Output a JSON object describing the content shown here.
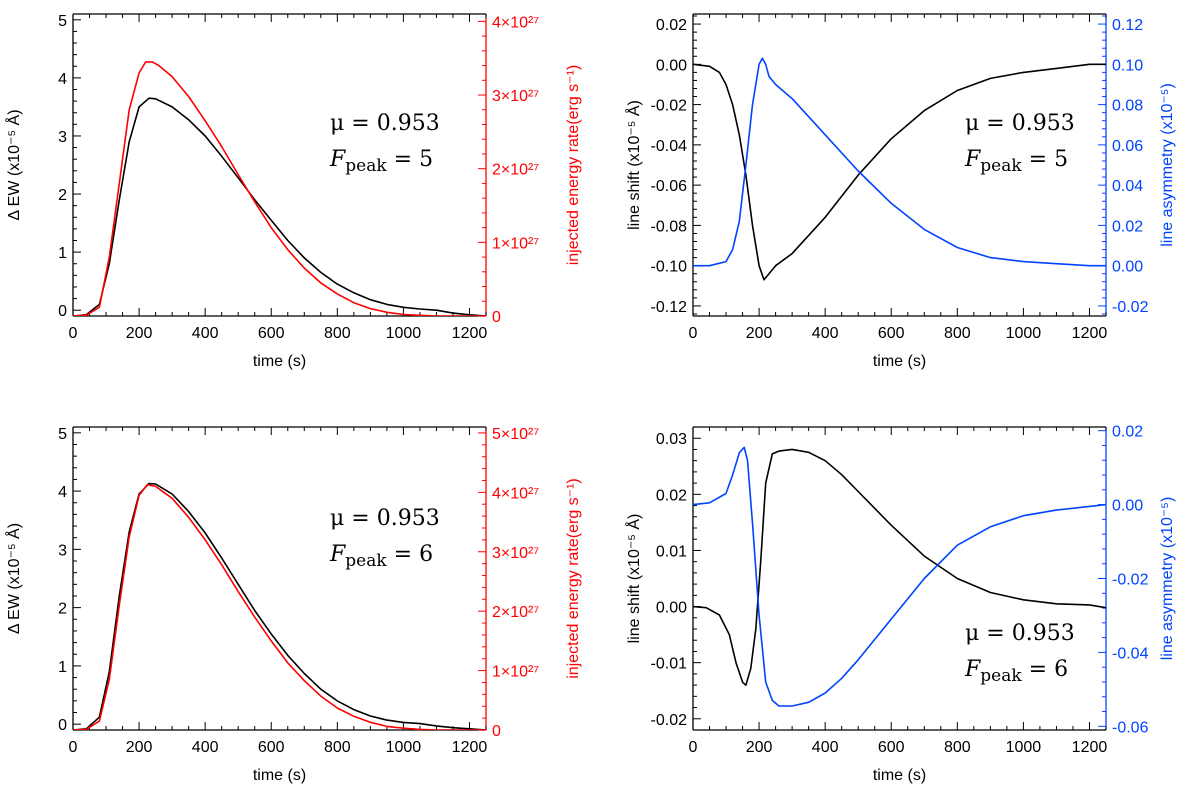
{
  "colors": {
    "axis": "#000000",
    "energy": "#ff0000",
    "asymmetry": "#0044ff"
  },
  "chart_data": [
    {
      "type": "line",
      "x_label": "time (s)",
      "y_label": "Δ EW (x10⁻⁵ Å)",
      "y2_label": "injected energy rate(erg s⁻¹)",
      "xlim": [
        0,
        1250
      ],
      "ylim": [
        -0.1,
        5.1
      ],
      "y2lim": [
        0,
        4.1e+27
      ],
      "x_ticks": [
        0,
        200,
        400,
        600,
        800,
        1000,
        1200
      ],
      "x_tick_labels": [
        "0",
        "200",
        "400",
        "600",
        "800",
        "1000",
        "1200"
      ],
      "y_ticks": [
        0,
        1,
        2,
        3,
        4,
        5
      ],
      "y_tick_labels": [
        "0",
        "1",
        "2",
        "3",
        "4",
        "5"
      ],
      "y2_ticks": [
        0,
        1e+27,
        2e+27,
        3e+27,
        4e+27
      ],
      "y2_tick_labels": [
        "0",
        "1×10²⁷",
        "2×10²⁷",
        "3×10²⁷",
        "4×10²⁷"
      ],
      "annotation": {
        "mu": "μ = 0.953",
        "f": "F",
        "f_sub": "peak",
        "f_val": " = 5"
      },
      "series": [
        {
          "axis": "left",
          "color": "#000000",
          "x": [
            0,
            40,
            80,
            110,
            140,
            170,
            200,
            230,
            250,
            300,
            350,
            400,
            450,
            500,
            550,
            600,
            650,
            700,
            750,
            800,
            850,
            900,
            950,
            1000,
            1050,
            1100,
            1150,
            1200,
            1250
          ],
          "values": [
            -0.1,
            -0.08,
            0.1,
            0.8,
            1.9,
            2.9,
            3.5,
            3.65,
            3.64,
            3.5,
            3.28,
            3.0,
            2.65,
            2.28,
            1.9,
            1.55,
            1.2,
            0.9,
            0.65,
            0.45,
            0.3,
            0.18,
            0.1,
            0.05,
            0.02,
            0.0,
            -0.05,
            -0.08,
            -0.1
          ]
        },
        {
          "axis": "right",
          "color": "#ff0000",
          "x": [
            0,
            40,
            80,
            110,
            140,
            170,
            200,
            220,
            240,
            260,
            300,
            350,
            400,
            450,
            500,
            550,
            600,
            650,
            700,
            750,
            800,
            850,
            900,
            950,
            1000,
            1050,
            1100,
            1150,
            1200,
            1250
          ],
          "values": [
            0,
            1e+25,
            1.2e+26,
            8e+26,
            1.8e+27,
            2.8e+27,
            3.3e+27,
            3.45e+27,
            3.45e+27,
            3.4e+27,
            3.25e+27,
            2.98e+27,
            2.65e+27,
            2.3e+27,
            1.92e+27,
            1.55e+27,
            1.2e+27,
            9e+26,
            6.5e+26,
            4.5e+26,
            3e+26,
            1.8e+26,
            1e+26,
            5e+25,
            2e+25,
            1e+25,
            0.0,
            0.0,
            0.0,
            0.0
          ]
        }
      ]
    },
    {
      "type": "line",
      "x_label": "time (s)",
      "y_label": "line shift (x10⁻⁵ Å)",
      "y2_label": "line asymmetry (x10⁻⁵)",
      "xlim": [
        0,
        1250
      ],
      "ylim": [
        -0.125,
        0.025
      ],
      "y2lim": [
        -0.025,
        0.125
      ],
      "x_ticks": [
        0,
        200,
        400,
        600,
        800,
        1000,
        1200
      ],
      "x_tick_labels": [
        "0",
        "200",
        "400",
        "600",
        "800",
        "1000",
        "1200"
      ],
      "y_ticks": [
        -0.12,
        -0.1,
        -0.08,
        -0.06,
        -0.04,
        -0.02,
        0.0,
        0.02
      ],
      "y_tick_labels": [
        "-0.12",
        "-0.10",
        "-0.08",
        "-0.06",
        "-0.04",
        "-0.02",
        "0.00",
        "0.02"
      ],
      "y2_ticks": [
        -0.02,
        0.0,
        0.02,
        0.04,
        0.06,
        0.08,
        0.1,
        0.12
      ],
      "y2_tick_labels": [
        "-0.02",
        "0.00",
        "0.02",
        "0.04",
        "0.06",
        "0.08",
        "0.10",
        "0.12"
      ],
      "annotation": {
        "mu": "μ = 0.953",
        "f": "F",
        "f_sub": "peak",
        "f_val": " = 5"
      },
      "series": [
        {
          "axis": "left",
          "color": "#000000",
          "x": [
            0,
            50,
            80,
            100,
            120,
            140,
            160,
            180,
            200,
            215,
            230,
            250,
            300,
            400,
            500,
            600,
            700,
            800,
            900,
            1000,
            1100,
            1200,
            1250
          ],
          "values": [
            0.0,
            -0.001,
            -0.004,
            -0.01,
            -0.02,
            -0.035,
            -0.055,
            -0.08,
            -0.1,
            -0.107,
            -0.104,
            -0.1,
            -0.094,
            -0.076,
            -0.055,
            -0.037,
            -0.023,
            -0.013,
            -0.007,
            -0.004,
            -0.002,
            0.0,
            0.0
          ]
        },
        {
          "axis": "right",
          "color": "#0044ff",
          "x": [
            0,
            50,
            100,
            120,
            140,
            160,
            180,
            200,
            210,
            220,
            230,
            250,
            300,
            400,
            500,
            600,
            700,
            800,
            900,
            1000,
            1100,
            1200,
            1250
          ],
          "values": [
            0.0,
            0.0,
            0.002,
            0.008,
            0.022,
            0.05,
            0.08,
            0.1,
            0.103,
            0.1,
            0.094,
            0.09,
            0.083,
            0.065,
            0.047,
            0.031,
            0.018,
            0.009,
            0.004,
            0.002,
            0.001,
            0.0,
            0.0
          ]
        }
      ]
    },
    {
      "type": "line",
      "x_label": "time (s)",
      "y_label": "Δ EW (x10⁻⁵ Å)",
      "y2_label": "injected energy rate(erg s⁻¹)",
      "xlim": [
        0,
        1250
      ],
      "ylim": [
        -0.1,
        5.1
      ],
      "y2lim": [
        0,
        5.1e+27
      ],
      "x_ticks": [
        0,
        200,
        400,
        600,
        800,
        1000,
        1200
      ],
      "x_tick_labels": [
        "0",
        "200",
        "400",
        "600",
        "800",
        "1000",
        "1200"
      ],
      "y_ticks": [
        0,
        1,
        2,
        3,
        4,
        5
      ],
      "y_tick_labels": [
        "0",
        "1",
        "2",
        "3",
        "4",
        "5"
      ],
      "y2_ticks": [
        0,
        1e+27,
        2e+27,
        3e+27,
        4e+27,
        5e+27
      ],
      "y2_tick_labels": [
        "0",
        "1×10²⁷",
        "2×10²⁷",
        "3×10²⁷",
        "4×10²⁷",
        "5×10²⁷"
      ],
      "annotation": {
        "mu": "μ = 0.953",
        "f": "F",
        "f_sub": "peak",
        "f_val": " = 6"
      },
      "series": [
        {
          "axis": "left",
          "color": "#000000",
          "x": [
            0,
            40,
            80,
            110,
            140,
            170,
            200,
            230,
            250,
            300,
            350,
            400,
            450,
            500,
            550,
            600,
            650,
            700,
            750,
            800,
            850,
            900,
            950,
            1000,
            1050,
            1100,
            1150,
            1200,
            1250
          ],
          "values": [
            -0.1,
            -0.08,
            0.12,
            0.9,
            2.2,
            3.3,
            3.95,
            4.13,
            4.12,
            3.95,
            3.65,
            3.28,
            2.85,
            2.4,
            1.95,
            1.55,
            1.18,
            0.87,
            0.6,
            0.4,
            0.25,
            0.14,
            0.07,
            0.03,
            0.01,
            -0.03,
            -0.06,
            -0.08,
            -0.1
          ]
        },
        {
          "axis": "right",
          "color": "#ff0000",
          "x": [
            0,
            40,
            80,
            110,
            140,
            170,
            200,
            225,
            250,
            300,
            350,
            400,
            450,
            500,
            550,
            600,
            650,
            700,
            750,
            800,
            850,
            900,
            950,
            1000,
            1050,
            1100,
            1150,
            1200,
            1250
          ],
          "values": [
            0,
            1e+25,
            1.5e+26,
            8.5e+26,
            2.1e+27,
            3.25e+27,
            3.95e+27,
            4.13e+27,
            4.1e+27,
            3.9e+27,
            3.58e+27,
            3.2e+27,
            2.78e+27,
            2.33e+27,
            1.9e+27,
            1.5e+27,
            1.13e+27,
            8.3e+26,
            5.7e+26,
            3.7e+26,
            2.3e+26,
            1.3e+26,
            6e+25,
            3e+25,
            1e+25,
            0.0,
            0.0,
            0.0,
            0.0
          ]
        }
      ]
    },
    {
      "type": "line",
      "x_label": "time (s)",
      "y_label": "line shift (x10⁻⁵ Å)",
      "y2_label": "line asymmetry (x10⁻⁵)",
      "xlim": [
        0,
        1250
      ],
      "ylim": [
        -0.022,
        0.032
      ],
      "y2lim": [
        -0.061,
        0.021
      ],
      "x_ticks": [
        0,
        200,
        400,
        600,
        800,
        1000,
        1200
      ],
      "x_tick_labels": [
        "0",
        "200",
        "400",
        "600",
        "800",
        "1000",
        "1200"
      ],
      "y_ticks": [
        -0.02,
        -0.01,
        0.0,
        0.01,
        0.02,
        0.03
      ],
      "y_tick_labels": [
        "-0.02",
        "-0.01",
        "0.00",
        "0.01",
        "0.02",
        "0.03"
      ],
      "y2_ticks": [
        -0.06,
        -0.04,
        -0.02,
        0.0,
        0.02
      ],
      "y2_tick_labels": [
        "-0.06",
        "-0.04",
        "-0.02",
        "0.00",
        "0.02"
      ],
      "annotation": {
        "mu": "μ = 0.953",
        "f": "F",
        "f_sub": "peak",
        "f_val": " = 6"
      },
      "series": [
        {
          "axis": "left",
          "color": "#000000",
          "x": [
            0,
            40,
            80,
            110,
            130,
            150,
            160,
            175,
            190,
            205,
            220,
            240,
            260,
            300,
            350,
            400,
            450,
            500,
            600,
            700,
            800,
            900,
            1000,
            1100,
            1200,
            1250
          ],
          "values": [
            0.0,
            -0.0002,
            -0.0015,
            -0.005,
            -0.01,
            -0.0135,
            -0.014,
            -0.011,
            -0.004,
            0.008,
            0.022,
            0.0272,
            0.0277,
            0.028,
            0.0275,
            0.026,
            0.0235,
            0.0205,
            0.0145,
            0.009,
            0.005,
            0.0025,
            0.0012,
            0.0005,
            0.0003,
            -0.0002
          ]
        },
        {
          "axis": "right",
          "color": "#0044ff",
          "x": [
            0,
            50,
            100,
            120,
            140,
            155,
            165,
            180,
            200,
            220,
            240,
            260,
            300,
            350,
            400,
            450,
            500,
            600,
            700,
            800,
            900,
            1000,
            1100,
            1200,
            1250
          ],
          "values": [
            0.0,
            0.0005,
            0.003,
            0.008,
            0.014,
            0.0155,
            0.012,
            -0.005,
            -0.03,
            -0.048,
            -0.053,
            -0.0545,
            -0.0545,
            -0.0535,
            -0.051,
            -0.047,
            -0.042,
            -0.031,
            -0.02,
            -0.011,
            -0.006,
            -0.003,
            -0.0015,
            -0.0005,
            0.0
          ]
        }
      ]
    }
  ]
}
